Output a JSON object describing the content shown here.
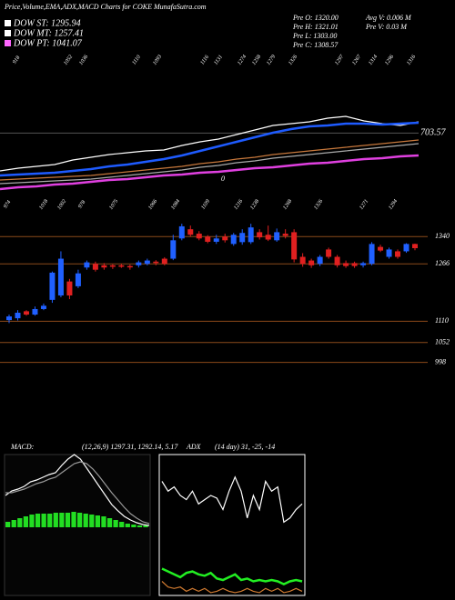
{
  "header": {
    "title": "Price,Volume,EMA,ADX,MACD Charts for COKE MunafaSutra.com"
  },
  "legend": [
    {
      "name": "DOW ST: 1295.94",
      "color": "#ffffff"
    },
    {
      "name": "DOW MT: 1257.41",
      "color": "#ffffff"
    },
    {
      "name": "DOW PT: 1041.07",
      "color": "#ff66ff"
    }
  ],
  "info": {
    "left": [
      "Pre O: 1320.00",
      "Pre H: 1321.01",
      "Pre L: 1303.00",
      "Pre C: 1308.57"
    ],
    "right": [
      "Avg V: 0.006  M",
      "Pre  V: 0.03  M"
    ]
  },
  "chart_data": [
    {
      "type": "line",
      "ylim": [
        640,
        790
      ],
      "yticks": [
        {
          "value": 703.57,
          "label": "703.57"
        }
      ],
      "top_labels": [
        918,
        1052,
        1036,
        1110,
        1093,
        1116,
        1131,
        1274,
        1258,
        1279,
        1326,
        1297,
        1267,
        1314,
        1296,
        1316
      ],
      "annotations": [
        "0"
      ],
      "series": [
        {
          "color": "#ffffff",
          "values": [
            662,
            665,
            667,
            669,
            674,
            677,
            680,
            682,
            684,
            685,
            690,
            694,
            697,
            702,
            707,
            712,
            714,
            716,
            720,
            722,
            717,
            714,
            712,
            716
          ]
        },
        {
          "color": "#1e5bff",
          "values": [
            657,
            658,
            659,
            660,
            662,
            664,
            667,
            669,
            672,
            675,
            679,
            684,
            689,
            694,
            699,
            704,
            708,
            711,
            712,
            714,
            714,
            713,
            714,
            715
          ]
        },
        {
          "color": "#c8783c",
          "values": [
            652,
            653,
            654,
            655,
            656,
            657,
            659,
            661,
            663,
            665,
            667,
            670,
            672,
            675,
            677,
            680,
            682,
            684,
            686,
            688,
            690,
            692,
            694,
            696
          ]
        },
        {
          "color": "#aaaaaa",
          "values": [
            648,
            649,
            650,
            651,
            652,
            653,
            655,
            657,
            659,
            661,
            663,
            666,
            668,
            671,
            673,
            676,
            678,
            680,
            682,
            684,
            686,
            688,
            690,
            692
          ]
        },
        {
          "color": "#e040e0",
          "values": [
            642,
            644,
            645,
            647,
            648,
            650,
            652,
            653,
            655,
            657,
            658,
            660,
            661,
            663,
            665,
            666,
            668,
            670,
            671,
            673,
            675,
            676,
            678,
            679
          ]
        }
      ]
    },
    {
      "type": "candlestick",
      "ylim": [
        960,
        1400
      ],
      "yticks": [
        1340,
        1266,
        1110,
        1052,
        998
      ],
      "up_color": "#2060ff",
      "down_color": "#e02020",
      "grid": true,
      "top_labels": [
        974,
        1018,
        1002,
        978,
        1075,
        1066,
        1084,
        1109,
        1216,
        1238,
        1268,
        1326,
        1271,
        1294
      ],
      "open": [
        1113,
        1118,
        1137,
        1128,
        1143,
        1168,
        1180,
        1218,
        1205,
        1256,
        1266,
        1262,
        1262,
        1262,
        1260,
        1262,
        1266,
        1272,
        1280,
        1280,
        1335,
        1360,
        1348,
        1340,
        1326,
        1340,
        1320,
        1325,
        1325,
        1352,
        1345,
        1330,
        1348,
        1352,
        1285,
        1275,
        1266,
        1305,
        1285,
        1268,
        1268,
        1262,
        1266,
        1312,
        1285,
        1300,
        1300,
        1320
      ],
      "high": [
        1128,
        1140,
        1140,
        1150,
        1158,
        1245,
        1300,
        1225,
        1250,
        1275,
        1272,
        1268,
        1265,
        1266,
        1264,
        1275,
        1280,
        1276,
        1284,
        1345,
        1375,
        1370,
        1355,
        1344,
        1345,
        1348,
        1350,
        1360,
        1375,
        1360,
        1370,
        1362,
        1360,
        1360,
        1295,
        1280,
        1290,
        1310,
        1290,
        1275,
        1272,
        1272,
        1325,
        1318,
        1310,
        1305,
        1322,
        1321.01
      ],
      "low": [
        1105,
        1112,
        1125,
        1125,
        1140,
        1160,
        1175,
        1170,
        1200,
        1250,
        1245,
        1250,
        1252,
        1255,
        1250,
        1256,
        1262,
        1262,
        1262,
        1276,
        1330,
        1340,
        1330,
        1322,
        1320,
        1324,
        1315,
        1318,
        1320,
        1332,
        1328,
        1326,
        1335,
        1270,
        1258,
        1255,
        1260,
        1280,
        1256,
        1255,
        1255,
        1256,
        1262,
        1298,
        1280,
        1280,
        1296,
        1303
      ],
      "close": [
        1123,
        1133,
        1128,
        1143,
        1152,
        1242,
        1280,
        1180,
        1240,
        1270,
        1250,
        1256,
        1258,
        1258,
        1258,
        1270,
        1275,
        1268,
        1266,
        1330,
        1368,
        1345,
        1335,
        1326,
        1335,
        1330,
        1345,
        1350,
        1365,
        1338,
        1332,
        1352,
        1342,
        1278,
        1266,
        1262,
        1285,
        1285,
        1262,
        1260,
        1260,
        1268,
        1320,
        1302,
        1305,
        1285,
        1320,
        1308.57
      ]
    },
    {
      "type": "combo",
      "title": "MACD:",
      "subtitle": "(12,26,9) 1297.31, 1292.14, 5.17",
      "ylim": [
        0,
        80
      ],
      "series": [
        {
          "type": "bar",
          "color": "#22dd22",
          "values": [
            6,
            8,
            10,
            12,
            14,
            15,
            15,
            15,
            16,
            16,
            16,
            17,
            16,
            15,
            14,
            13,
            12,
            10,
            8,
            6,
            4,
            3,
            2,
            2
          ]
        },
        {
          "type": "line",
          "color": "#ffffff",
          "values": [
            35,
            40,
            42,
            45,
            50,
            52,
            55,
            58,
            60,
            68,
            75,
            80,
            75,
            65,
            55,
            45,
            35,
            25,
            18,
            12,
            8,
            5,
            3,
            2
          ]
        },
        {
          "type": "line",
          "color": "#999999",
          "values": [
            38,
            38,
            40,
            42,
            45,
            48,
            50,
            53,
            55,
            60,
            65,
            70,
            72,
            70,
            64,
            56,
            47,
            38,
            30,
            22,
            15,
            10,
            6,
            4
          ]
        }
      ]
    },
    {
      "type": "combo",
      "title": "ADX",
      "subtitle": "(14 day) 31, -25, -14",
      "ylim": [
        0,
        100
      ],
      "series": [
        {
          "type": "line",
          "color": "#ffffff",
          "values": [
            81,
            74,
            77,
            71,
            68,
            74,
            65,
            68,
            71,
            69,
            61,
            74,
            84,
            74,
            55,
            71,
            61,
            81,
            74,
            77,
            52,
            55,
            61,
            65
          ]
        },
        {
          "type": "line",
          "color": "#22ee22",
          "values": [
            19,
            17,
            15,
            13,
            16,
            17,
            15,
            14,
            16,
            12,
            11,
            13,
            15,
            11,
            12,
            10,
            11,
            10,
            11,
            10,
            8,
            10,
            11,
            10
          ]
        },
        {
          "type": "line",
          "color": "#d07a30",
          "values": [
            10,
            6,
            5,
            6,
            3,
            5,
            3,
            5,
            2,
            3,
            5,
            3,
            2,
            3,
            5,
            3,
            2,
            5,
            3,
            5,
            2,
            3,
            5,
            3
          ]
        }
      ]
    }
  ]
}
